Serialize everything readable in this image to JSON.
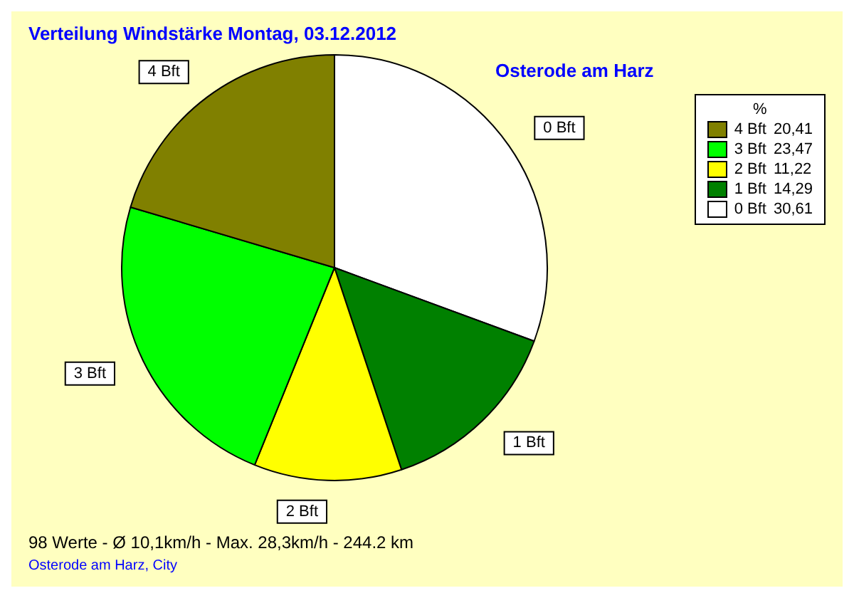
{
  "chart_data": {
    "type": "pie",
    "title": "Verteilung Windstärke  Montag, 03.12.2012",
    "subtitle": "Osterode am Harz",
    "categories": [
      "0 Bft",
      "1 Bft",
      "2 Bft",
      "3 Bft",
      "4 Bft"
    ],
    "values": [
      30.61,
      14.29,
      11.22,
      23.47,
      20.41
    ],
    "value_labels": [
      "30,61",
      "14,29",
      "11,22",
      "23,47",
      "20,41"
    ],
    "colors": [
      "#ffffff",
      "#008000",
      "#ffff00",
      "#00ff00",
      "#808000"
    ],
    "legend": "top right",
    "legend_title": "%",
    "annotations": [
      "98 Werte   -   Ø 10,1km/h  -  Max. 28,3km/h   -   244.2 km",
      "Osterode am Harz, City"
    ]
  }
}
